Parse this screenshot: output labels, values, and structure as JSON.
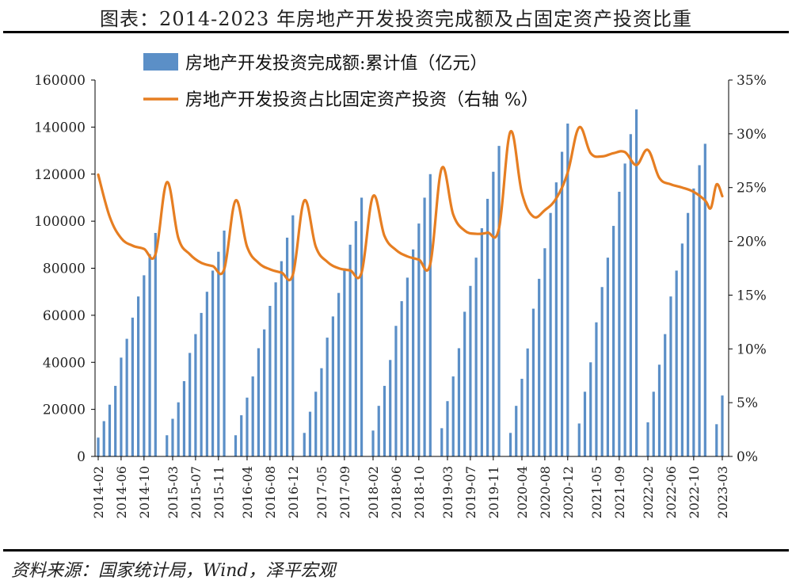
{
  "title": "图表：2014-2023 年房地产开发投资完成额及占固定资产投资比重",
  "source": "资料来源：国家统计局，Wind，泽平宏观",
  "chart_data": {
    "type": "bar+line",
    "title": "图表：2014-2023 年房地产开发投资完成额及占固定资产投资比重",
    "x_tick_labels": [
      "2014-02",
      "2014-06",
      "2014-10",
      "2015-03",
      "2015-07",
      "2015-11",
      "2016-04",
      "2016-08",
      "2016-12",
      "2017-05",
      "2017-09",
      "2018-02",
      "2018-06",
      "2018-10",
      "2019-03",
      "2019-07",
      "2019-11",
      "2020-04",
      "2020-08",
      "2020-12",
      "2021-05",
      "2021-09",
      "2022-02",
      "2022-06",
      "2022-10",
      "2023-03"
    ],
    "left_axis": {
      "ylim": [
        0,
        160000
      ],
      "ticks": [
        "0",
        "20000",
        "40000",
        "60000",
        "80000",
        "100000",
        "120000",
        "140000",
        "160000"
      ]
    },
    "right_axis": {
      "ylim": [
        0,
        35
      ],
      "ticks": [
        "0%",
        "5%",
        "10%",
        "15%",
        "20%",
        "25%",
        "30%",
        "35%"
      ]
    },
    "grid": false,
    "legend_position": "top",
    "series": [
      {
        "name": "房地产开发投资完成额:累计值（亿元）",
        "type": "bar",
        "axis": "left",
        "color": "#5b8fc7",
        "years": [
          {
            "start": "2014-02",
            "values": [
              8000,
              15000,
              22000,
              30000,
              42000,
              50000,
              59000,
              68000,
              77000,
              86000,
              95000
            ]
          },
          {
            "start": "2015-02",
            "values": [
              9000,
              16000,
              23000,
              32000,
              44000,
              52000,
              61000,
              70000,
              79000,
              87000,
              96000
            ]
          },
          {
            "start": "2016-02",
            "values": [
              9000,
              17500,
              25000,
              34000,
              46000,
              54000,
              64000,
              74000,
              83000,
              93000,
              102500
            ]
          },
          {
            "start": "2017-02",
            "values": [
              10000,
              19000,
              27500,
              37500,
              50500,
              59500,
              69500,
              80000,
              90000,
              100000,
              110000
            ]
          },
          {
            "start": "2018-02",
            "values": [
              11000,
              21500,
              30000,
              41000,
              55500,
              66000,
              76000,
              88000,
              99000,
              110000,
              120000
            ]
          },
          {
            "start": "2019-02",
            "values": [
              12000,
              23500,
              34000,
              46000,
              61500,
              72500,
              84500,
              97000,
              109500,
              121000,
              132000
            ]
          },
          {
            "start": "2020-02",
            "values": [
              10000,
              21500,
              33000,
              45900,
              62800,
              75500,
              88500,
              103500,
              116500,
              129500,
              141500
            ]
          },
          {
            "start": "2021-02",
            "values": [
              14000,
              27500,
              40000,
              57000,
              72000,
              84500,
              98000,
              112500,
              124500,
              137000,
              147500
            ]
          },
          {
            "start": "2022-02",
            "values": [
              14500,
              27500,
              39000,
              52000,
              68000,
              79000,
              90500,
              103500,
              113900,
              123800,
              132900
            ]
          },
          {
            "start": "2023-02",
            "values": [
              13700,
              25900
            ]
          }
        ]
      },
      {
        "name": "房地产开发投资占比固定资产投资（右轴 %）",
        "type": "line",
        "axis": "right",
        "color": "#e67e22",
        "points": [
          {
            "x": "2014-02",
            "y": 26.2
          },
          {
            "x": "2014-04",
            "y": 22.3
          },
          {
            "x": "2014-06",
            "y": 20.3
          },
          {
            "x": "2014-08",
            "y": 19.6
          },
          {
            "x": "2014-10",
            "y": 19.3
          },
          {
            "x": "2014-12",
            "y": 18.8
          },
          {
            "x": "2015-02",
            "y": 25.5
          },
          {
            "x": "2015-04",
            "y": 20.3
          },
          {
            "x": "2015-06",
            "y": 18.8
          },
          {
            "x": "2015-08",
            "y": 18.0
          },
          {
            "x": "2015-10",
            "y": 17.7
          },
          {
            "x": "2015-12",
            "y": 17.4
          },
          {
            "x": "2016-02",
            "y": 23.8
          },
          {
            "x": "2016-04",
            "y": 19.5
          },
          {
            "x": "2016-06",
            "y": 18.0
          },
          {
            "x": "2016-08",
            "y": 17.4
          },
          {
            "x": "2016-10",
            "y": 17.1
          },
          {
            "x": "2016-12",
            "y": 16.9
          },
          {
            "x": "2017-02",
            "y": 23.8
          },
          {
            "x": "2017-04",
            "y": 19.5
          },
          {
            "x": "2017-06",
            "y": 18.1
          },
          {
            "x": "2017-08",
            "y": 17.5
          },
          {
            "x": "2017-10",
            "y": 17.3
          },
          {
            "x": "2017-12",
            "y": 17.1
          },
          {
            "x": "2018-02",
            "y": 24.2
          },
          {
            "x": "2018-04",
            "y": 20.5
          },
          {
            "x": "2018-06",
            "y": 19.2
          },
          {
            "x": "2018-08",
            "y": 18.6
          },
          {
            "x": "2018-10",
            "y": 18.3
          },
          {
            "x": "2018-12",
            "y": 17.9
          },
          {
            "x": "2019-02",
            "y": 26.8
          },
          {
            "x": "2019-04",
            "y": 22.5
          },
          {
            "x": "2019-06",
            "y": 21.0
          },
          {
            "x": "2019-08",
            "y": 20.7
          },
          {
            "x": "2019-10",
            "y": 20.8
          },
          {
            "x": "2019-12",
            "y": 21.2
          },
          {
            "x": "2020-02",
            "y": 30.2
          },
          {
            "x": "2020-04",
            "y": 24.5
          },
          {
            "x": "2020-06",
            "y": 22.3
          },
          {
            "x": "2020-08",
            "y": 22.9
          },
          {
            "x": "2020-10",
            "y": 24.0
          },
          {
            "x": "2020-12",
            "y": 26.4
          },
          {
            "x": "2021-02",
            "y": 30.6
          },
          {
            "x": "2021-04",
            "y": 28.2
          },
          {
            "x": "2021-06",
            "y": 27.9
          },
          {
            "x": "2021-08",
            "y": 28.2
          },
          {
            "x": "2021-10",
            "y": 28.3
          },
          {
            "x": "2021-12",
            "y": 27.1
          },
          {
            "x": "2022-02",
            "y": 28.5
          },
          {
            "x": "2022-04",
            "y": 25.9
          },
          {
            "x": "2022-06",
            "y": 25.3
          },
          {
            "x": "2022-08",
            "y": 25.0
          },
          {
            "x": "2022-10",
            "y": 24.6
          },
          {
            "x": "2022-12",
            "y": 23.8
          },
          {
            "x": "2023-01",
            "y": 23.1
          },
          {
            "x": "2023-02",
            "y": 25.3
          },
          {
            "x": "2023-03",
            "y": 24.2
          }
        ]
      }
    ]
  }
}
